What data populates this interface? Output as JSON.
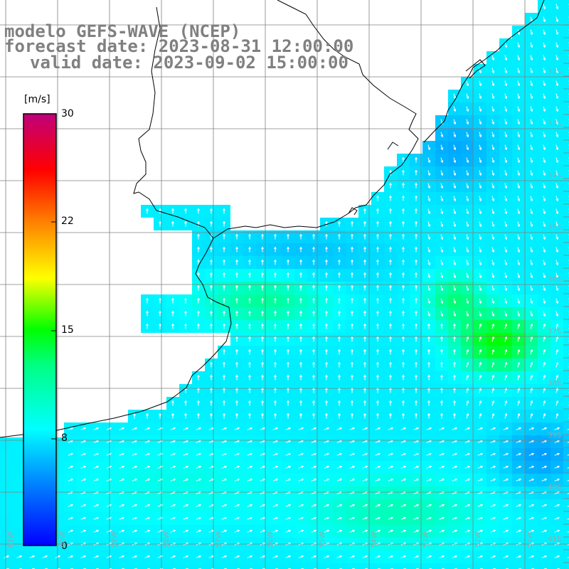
{
  "title": {
    "line1": "modelo GEFS-WAVE (NCEP)",
    "line2": "forecast date: 2023-08-31 12:00:00",
    "line3": "valid date: 2023-09-02 15:00:00"
  },
  "colorbar": {
    "units": "[m/s]",
    "ticks": [
      "30",
      "22",
      "15",
      "8",
      "0"
    ],
    "colors": [
      "#0000ff",
      "#0080ff",
      "#00ffff",
      "#00ff00",
      "#ffff00",
      "#ff8000",
      "#ff0000",
      "#c0007a"
    ]
  },
  "lat_labels": [
    "32S",
    "33S",
    "34S",
    "35S",
    "36S",
    "37S",
    "38S",
    "39S",
    "40S",
    "41S"
  ],
  "lon_labels": [
    "61W",
    "60W",
    "59W",
    "58W",
    "57W",
    "56W",
    "55W",
    "54W",
    "53W",
    "52W",
    "51W"
  ],
  "map_colors": {
    "land": "#ffffff",
    "coast": "#000000",
    "grid": "#808080",
    "arrow": "#ffffff"
  }
}
